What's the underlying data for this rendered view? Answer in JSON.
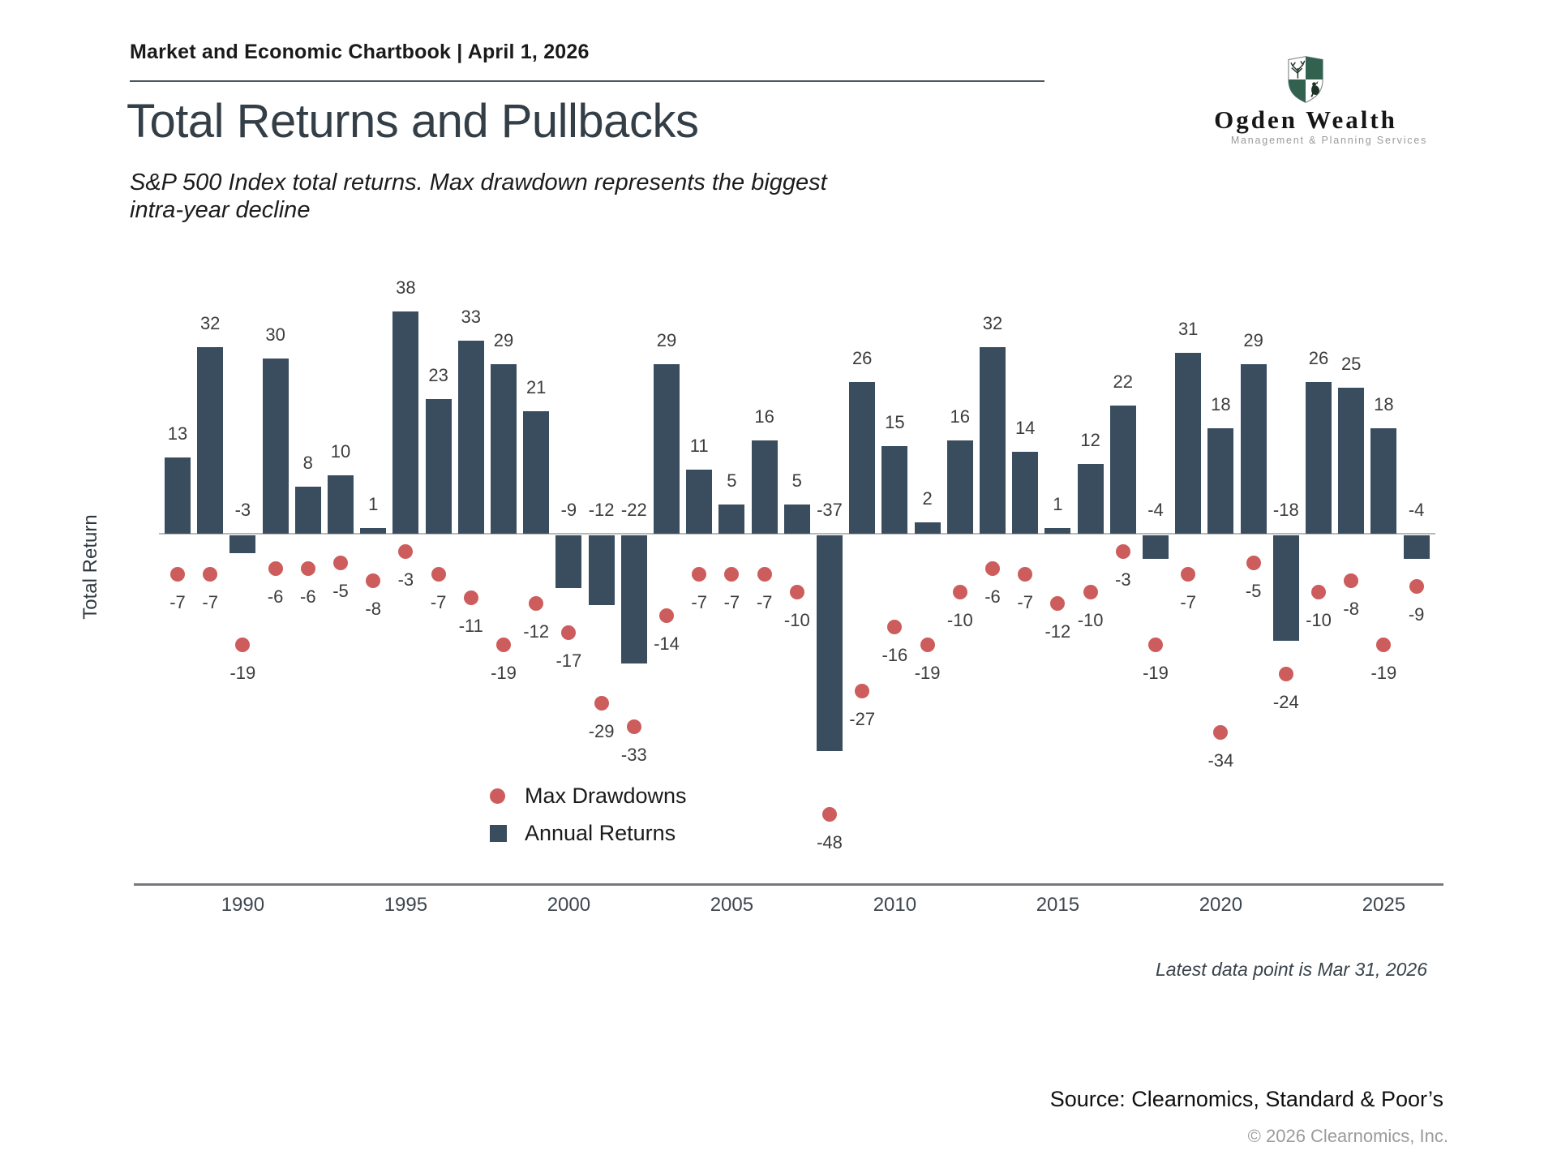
{
  "header": {
    "chartbook": "Market and Economic Chartbook | April 1, 2026",
    "title": "Total Returns and Pullbacks",
    "subtitle": "S&P 500 Index total returns. Max drawdown represents the biggest intra-year decline"
  },
  "logo": {
    "name": "Ogden Wealth",
    "tagline": "Management & Planning Services",
    "shield_green": "#33614f",
    "shield_figure_color": "#1f3328"
  },
  "chart_data": {
    "type": "bar",
    "title": "Total Returns and Pullbacks",
    "ylabel": "Total Return",
    "years": [
      1988,
      1989,
      1990,
      1991,
      1992,
      1993,
      1994,
      1995,
      1996,
      1997,
      1998,
      1999,
      2000,
      2001,
      2002,
      2003,
      2004,
      2005,
      2006,
      2007,
      2008,
      2009,
      2010,
      2011,
      2012,
      2013,
      2014,
      2015,
      2016,
      2017,
      2018,
      2019,
      2020,
      2021,
      2022,
      2023,
      2024,
      2025,
      2026
    ],
    "series": [
      {
        "name": "Annual Returns",
        "type": "bar",
        "color": "#394d5e",
        "values": [
          13,
          32,
          -3,
          30,
          8,
          10,
          1,
          38,
          23,
          33,
          29,
          21,
          -9,
          -12,
          -22,
          29,
          11,
          5,
          16,
          5,
          -37,
          26,
          15,
          2,
          16,
          32,
          14,
          1,
          12,
          22,
          -4,
          31,
          18,
          29,
          -18,
          26,
          25,
          18,
          -4
        ]
      },
      {
        "name": "Max Drawdowns",
        "type": "scatter",
        "color": "#cd5c5c",
        "values": [
          -7,
          -7,
          -19,
          -6,
          -6,
          -5,
          -8,
          -3,
          -7,
          -11,
          -19,
          -12,
          -17,
          -29,
          -33,
          -14,
          -7,
          -7,
          -7,
          -10,
          -48,
          -27,
          -16,
          -19,
          -10,
          -6,
          -7,
          -12,
          -10,
          -3,
          -19,
          -7,
          -34,
          -5,
          -24,
          -10,
          -8,
          -19,
          -9
        ]
      }
    ],
    "x_tick_labels": [
      "1990",
      "1995",
      "2000",
      "2005",
      "2010",
      "2015",
      "2020",
      "2025"
    ],
    "ylim": [
      -55,
      45
    ],
    "grid": false,
    "legend_items": [
      {
        "marker": "red-dot",
        "label": "Max Drawdowns"
      },
      {
        "marker": "dark-square",
        "label": "Annual Returns"
      }
    ],
    "footnote": "Latest data point is Mar 31, 2026"
  },
  "footer": {
    "source": "Source: Clearnomics, Standard & Poor’s",
    "copyright": "© 2026 Clearnomics, Inc."
  }
}
